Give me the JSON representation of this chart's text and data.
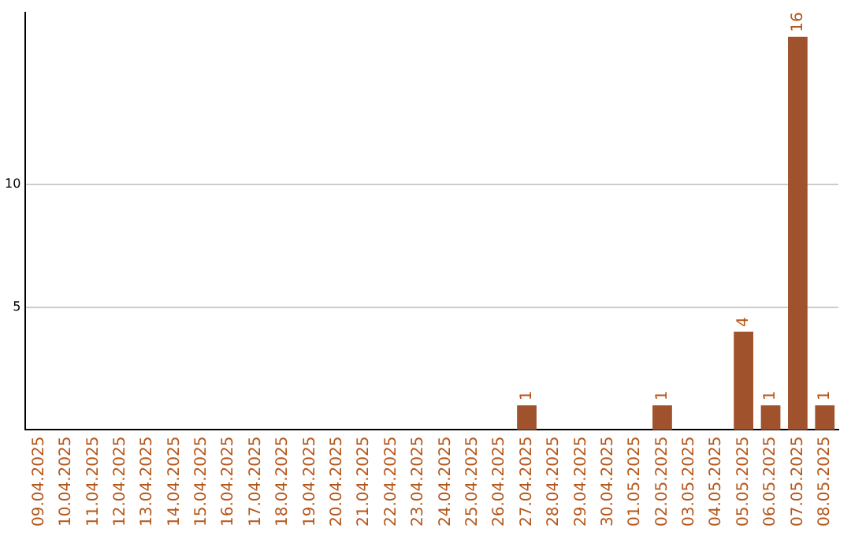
{
  "chart_data": {
    "type": "bar",
    "categories": [
      "09.04.2025",
      "10.04.2025",
      "11.04.2025",
      "12.04.2025",
      "13.04.2025",
      "14.04.2025",
      "15.04.2025",
      "16.04.2025",
      "17.04.2025",
      "18.04.2025",
      "19.04.2025",
      "20.04.2025",
      "21.04.2025",
      "22.04.2025",
      "23.04.2025",
      "24.04.2025",
      "25.04.2025",
      "26.04.2025",
      "27.04.2025",
      "28.04.2025",
      "29.04.2025",
      "30.04.2025",
      "01.05.2025",
      "02.05.2025",
      "03.05.2025",
      "04.05.2025",
      "05.05.2025",
      "06.05.2025",
      "07.05.2025",
      "08.05.2025"
    ],
    "values": [
      0,
      0,
      0,
      0,
      0,
      0,
      0,
      0,
      0,
      0,
      0,
      0,
      0,
      0,
      0,
      0,
      0,
      0,
      1,
      0,
      0,
      0,
      0,
      1,
      0,
      0,
      4,
      1,
      16,
      1
    ],
    "value_labels": [
      null,
      null,
      null,
      null,
      null,
      null,
      null,
      null,
      null,
      null,
      null,
      null,
      null,
      null,
      null,
      null,
      null,
      null,
      "1",
      null,
      null,
      null,
      null,
      "1",
      null,
      null,
      "4",
      "1",
      "16",
      "1"
    ],
    "color": "#a0522d",
    "ylim": [
      0,
      17
    ],
    "yticks": [
      5,
      10
    ],
    "grid": "y",
    "legend": false
  }
}
